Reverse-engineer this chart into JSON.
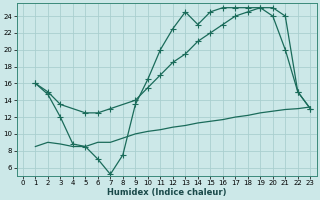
{
  "xlabel": "Humidex (Indice chaleur)",
  "bg_color": "#cce8e8",
  "grid_color": "#aacfcf",
  "line_color": "#1a6b5a",
  "xlim": [
    -0.5,
    23.5
  ],
  "ylim": [
    5,
    25.5
  ],
  "yticks": [
    6,
    8,
    10,
    12,
    14,
    16,
    18,
    20,
    22,
    24
  ],
  "xticks": [
    0,
    1,
    2,
    3,
    4,
    5,
    6,
    7,
    8,
    9,
    10,
    11,
    12,
    13,
    14,
    15,
    16,
    17,
    18,
    19,
    20,
    21,
    22,
    23
  ],
  "curve1_x": [
    1,
    2,
    3,
    4,
    5,
    6,
    7,
    8,
    9,
    10,
    11,
    12,
    13,
    14,
    15,
    16,
    17,
    18,
    19,
    20,
    21,
    22,
    23
  ],
  "curve1_y": [
    16.0,
    14.7,
    12.0,
    8.8,
    8.5,
    7.0,
    5.2,
    7.5,
    13.5,
    16.5,
    20.0,
    22.5,
    24.5,
    23.0,
    24.5,
    25.0,
    25.0,
    25.0,
    25.0,
    24.0,
    20.0,
    15.0,
    13.0
  ],
  "curve2_x": [
    1,
    2,
    3,
    5,
    6,
    7,
    9,
    10,
    11,
    12,
    13,
    14,
    15,
    16,
    17,
    18,
    19,
    20,
    21,
    22,
    23
  ],
  "curve2_y": [
    16.0,
    15.0,
    13.5,
    12.5,
    12.5,
    13.0,
    14.0,
    15.5,
    17.0,
    18.5,
    19.5,
    21.0,
    22.0,
    23.0,
    24.0,
    24.5,
    25.0,
    25.0,
    24.0,
    15.0,
    13.0
  ],
  "curve3_x": [
    1,
    2,
    3,
    4,
    5,
    6,
    7,
    8,
    9,
    10,
    11,
    12,
    13,
    14,
    15,
    16,
    17,
    18,
    19,
    20,
    21,
    22,
    23
  ],
  "curve3_y": [
    8.5,
    9.0,
    8.8,
    8.5,
    8.5,
    9.0,
    9.0,
    9.5,
    10.0,
    10.3,
    10.5,
    10.8,
    11.0,
    11.3,
    11.5,
    11.7,
    12.0,
    12.2,
    12.5,
    12.7,
    12.9,
    13.0,
    13.2
  ]
}
